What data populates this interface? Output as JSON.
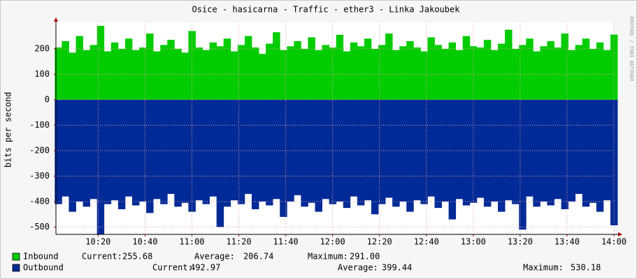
{
  "chart_data": {
    "type": "area-bars",
    "title": "Osice - hasicarna - Traffic - ether3 - Linka Jakoubek",
    "side_label": "RRDTOOL / TOBI OETIKER",
    "y_label": "bits per second",
    "grid": true,
    "xlim": [
      602,
      840
    ],
    "ylim": [
      -526,
      304
    ],
    "yticks": [
      -500,
      -400,
      -300,
      -200,
      -100,
      0,
      100,
      200
    ],
    "xticks": [
      {
        "value": 620,
        "label": "10:20"
      },
      {
        "value": 640,
        "label": "10:40"
      },
      {
        "value": 660,
        "label": "11:00"
      },
      {
        "value": 680,
        "label": "11:20"
      },
      {
        "value": 700,
        "label": "11:40"
      },
      {
        "value": 720,
        "label": "12:00"
      },
      {
        "value": 740,
        "label": "12:20"
      },
      {
        "value": 760,
        "label": "12:40"
      },
      {
        "value": 780,
        "label": "13:00"
      },
      {
        "value": 800,
        "label": "13:20"
      },
      {
        "value": 820,
        "label": "13:40"
      },
      {
        "value": 840,
        "label": "14:00"
      }
    ],
    "x": [
      603,
      606,
      609,
      612,
      615,
      618,
      621,
      624,
      627,
      630,
      633,
      636,
      639,
      642,
      645,
      648,
      651,
      654,
      657,
      660,
      663,
      666,
      669,
      672,
      675,
      678,
      681,
      684,
      687,
      690,
      693,
      696,
      699,
      702,
      705,
      708,
      711,
      714,
      717,
      720,
      723,
      726,
      729,
      732,
      735,
      738,
      741,
      744,
      747,
      750,
      753,
      756,
      759,
      762,
      765,
      768,
      771,
      774,
      777,
      780,
      783,
      786,
      789,
      792,
      795,
      798,
      801,
      804,
      807,
      810,
      813,
      816,
      819,
      822,
      825,
      828,
      831,
      834,
      837,
      840
    ],
    "stat_labels": [
      "Current:",
      "Average:",
      "Maximum:"
    ],
    "series": [
      {
        "name": "Inbound",
        "color": "#00cc00",
        "current": 255.68,
        "average": 206.74,
        "maximum": 291.0,
        "values": [
          205,
          230,
          185,
          250,
          195,
          215,
          290,
          190,
          225,
          200,
          240,
          195,
          205,
          260,
          190,
          215,
          235,
          200,
          185,
          270,
          205,
          195,
          225,
          210,
          240,
          190,
          215,
          250,
          205,
          180,
          220,
          265,
          195,
          210,
          230,
          200,
          245,
          195,
          215,
          205,
          255,
          190,
          225,
          210,
          240,
          200,
          215,
          260,
          195,
          210,
          230,
          205,
          190,
          245,
          215,
          200,
          225,
          195,
          250,
          210,
          205,
          235,
          195,
          220,
          275,
          200,
          215,
          240,
          190,
          210,
          230,
          205,
          260,
          195,
          215,
          240,
          200,
          225,
          195,
          256
        ]
      },
      {
        "name": "Outbound",
        "color": "#002a97",
        "current": 492.97,
        "average": 399.44,
        "maximum": 530.18,
        "values": [
          -410,
          -380,
          -440,
          -400,
          -420,
          -390,
          -530,
          -410,
          -395,
          -430,
          -380,
          -415,
          -400,
          -445,
          -390,
          -410,
          -370,
          -420,
          -405,
          -440,
          -395,
          -410,
          -380,
          -500,
          -420,
          -395,
          -410,
          -370,
          -430,
          -400,
          -415,
          -390,
          -460,
          -400,
          -375,
          -420,
          -405,
          -440,
          -390,
          -410,
          -400,
          -425,
          -380,
          -415,
          -395,
          -450,
          -410,
          -385,
          -420,
          -400,
          -440,
          -395,
          -410,
          -380,
          -425,
          -400,
          -470,
          -390,
          -415,
          -405,
          -385,
          -420,
          -400,
          -440,
          -395,
          -410,
          -510,
          -380,
          -420,
          -400,
          -415,
          -390,
          -430,
          -400,
          -370,
          -420,
          -405,
          -440,
          -395,
          -493
        ]
      }
    ]
  }
}
